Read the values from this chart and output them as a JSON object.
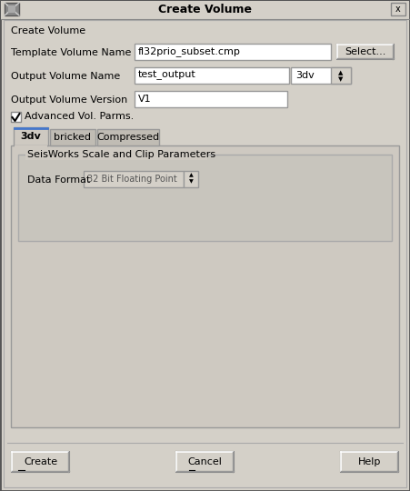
{
  "title_text": "Create Volume",
  "section_label": "Create Volume",
  "field1_label": "Template Volume Name",
  "field1_value": "fl32prio_subset.cmp",
  "field2_label": "Output Volume Name",
  "field2_value": "test_output",
  "field2_dropdown": "3dv",
  "field3_label": "Output Volume Version",
  "field3_value": "V1",
  "checkbox_label": "Advanced Vol. Parms.",
  "tab1": "3dv",
  "tab2": "bricked",
  "tab3": "Compressed",
  "group_label": "SeisWorks Scale and Clip Parameters",
  "data_format_label": "Data Format",
  "data_format_value": "32 Bit Floating Point",
  "btn1": "Create",
  "btn2": "Cancel",
  "btn3": "Help",
  "select_btn": "Select...",
  "bg_color": "#d4d0c8",
  "input_bg": "#ffffff",
  "border_dark": "#888888",
  "border_light": "#aaaaaa",
  "tab_panel_bg": "#cec9c1",
  "group_bg": "#c8c5bd",
  "inactive_tab_bg": "#c0bcb4",
  "text_color": "#000000",
  "font_size": 8.0,
  "title_font_size": 9.0
}
